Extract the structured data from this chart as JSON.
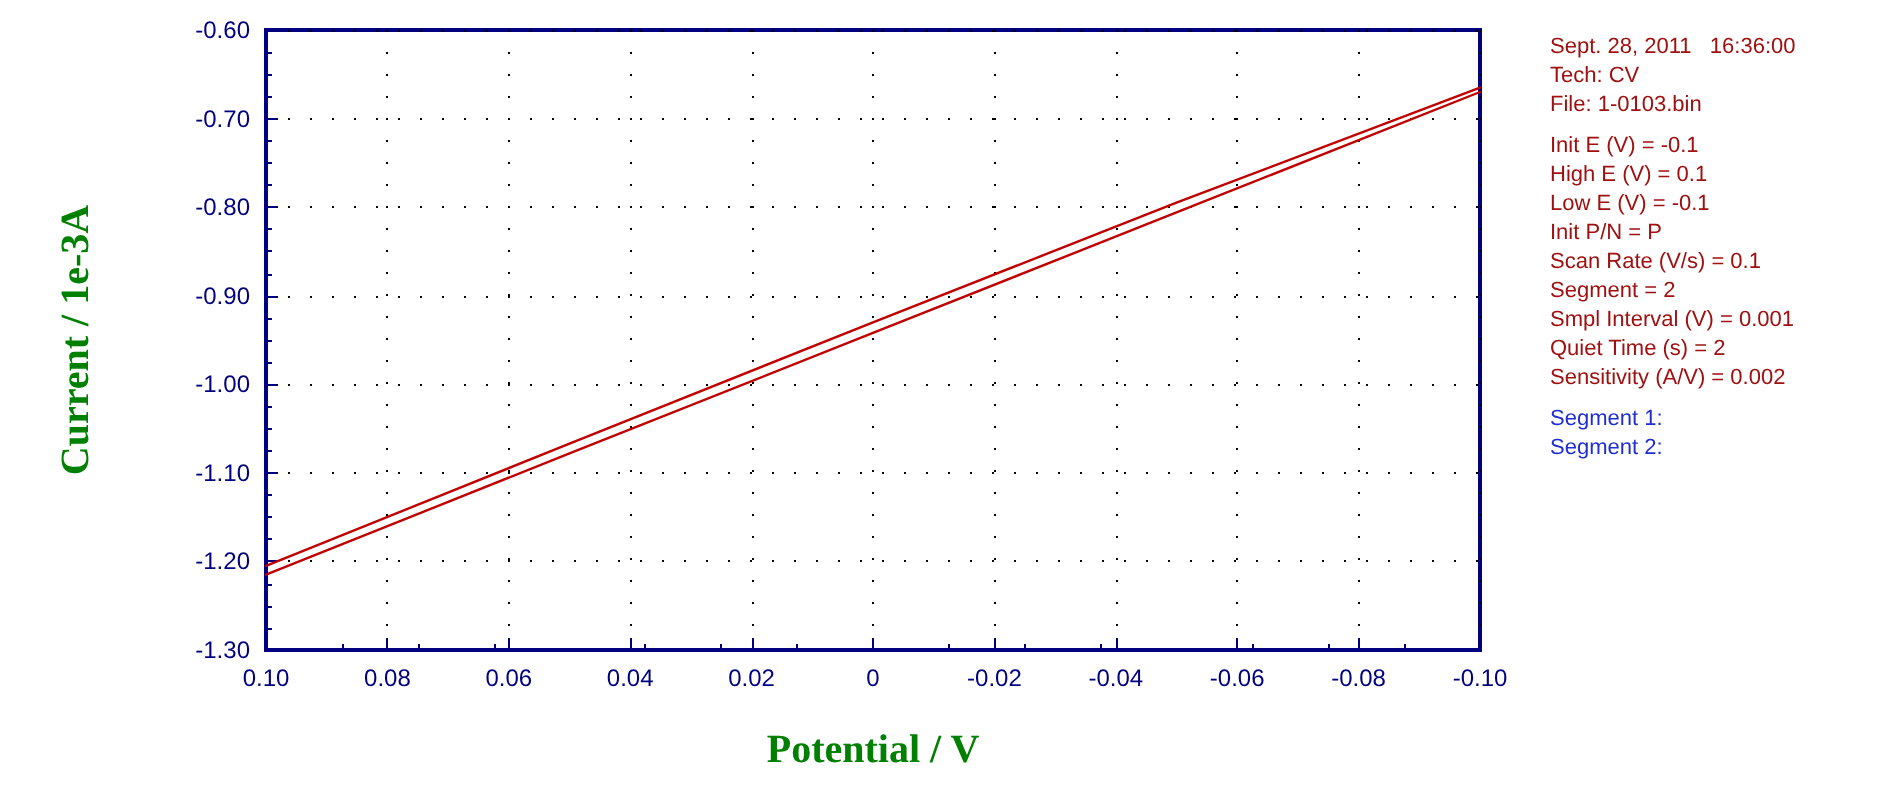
{
  "chart_data": {
    "type": "line",
    "xlabel": "Potential / V",
    "ylabel": "Current / 1e-3A",
    "xlim": [
      0.1,
      -0.1
    ],
    "ylim": [
      -1.3,
      -0.6
    ],
    "xticks": [
      {
        "value": 0.1,
        "label": "0.10"
      },
      {
        "value": 0.08,
        "label": "0.08"
      },
      {
        "value": 0.06,
        "label": "0.06"
      },
      {
        "value": 0.04,
        "label": "0.04"
      },
      {
        "value": 0.02,
        "label": "0.02"
      },
      {
        "value": 0,
        "label": "0"
      },
      {
        "value": -0.02,
        "label": "-0.02"
      },
      {
        "value": -0.04,
        "label": "-0.04"
      },
      {
        "value": -0.06,
        "label": "-0.06"
      },
      {
        "value": -0.08,
        "label": "-0.08"
      },
      {
        "value": -0.1,
        "label": "-0.10"
      }
    ],
    "yticks": [
      {
        "value": -1.3,
        "label": "-1.30"
      },
      {
        "value": -1.2,
        "label": "-1.20"
      },
      {
        "value": -1.1,
        "label": "-1.10"
      },
      {
        "value": -1.0,
        "label": "-1.00"
      },
      {
        "value": -0.9,
        "label": "-0.90"
      },
      {
        "value": -0.8,
        "label": "-0.80"
      },
      {
        "value": -0.7,
        "label": "-0.70"
      },
      {
        "value": -0.6,
        "label": "-0.60"
      }
    ],
    "grid": true,
    "marker": "none",
    "line_style": "solid",
    "series": [
      {
        "color": "#c00000",
        "x": [
          -0.1,
          -0.05,
          0,
          0.05,
          0.1
        ],
        "values": [
          -0.665,
          -0.795,
          -0.93,
          -1.067,
          -1.205
        ]
      },
      {
        "color": "#c00000",
        "x": [
          0.1,
          0.05,
          0,
          -0.05,
          -0.1
        ],
        "values": [
          -1.215,
          -1.078,
          -0.942,
          -0.806,
          -0.67
        ]
      }
    ],
    "annotations": [
      "Sept. 28, 2011   16:36:00",
      "Tech: CV",
      "File: 1-0103.bin",
      "Init E (V) = -0.1",
      "High E (V) = 0.1",
      "Low E (V) = -0.1",
      "Init P/N = P",
      "Scan Rate (V/s) = 0.1",
      "Segment = 2",
      "Smpl Interval (V) = 0.001",
      "Quiet Time (s) = 2",
      "Sensitivity (A/V) = 0.002",
      "Segment 1:",
      "Segment 2:"
    ]
  }
}
